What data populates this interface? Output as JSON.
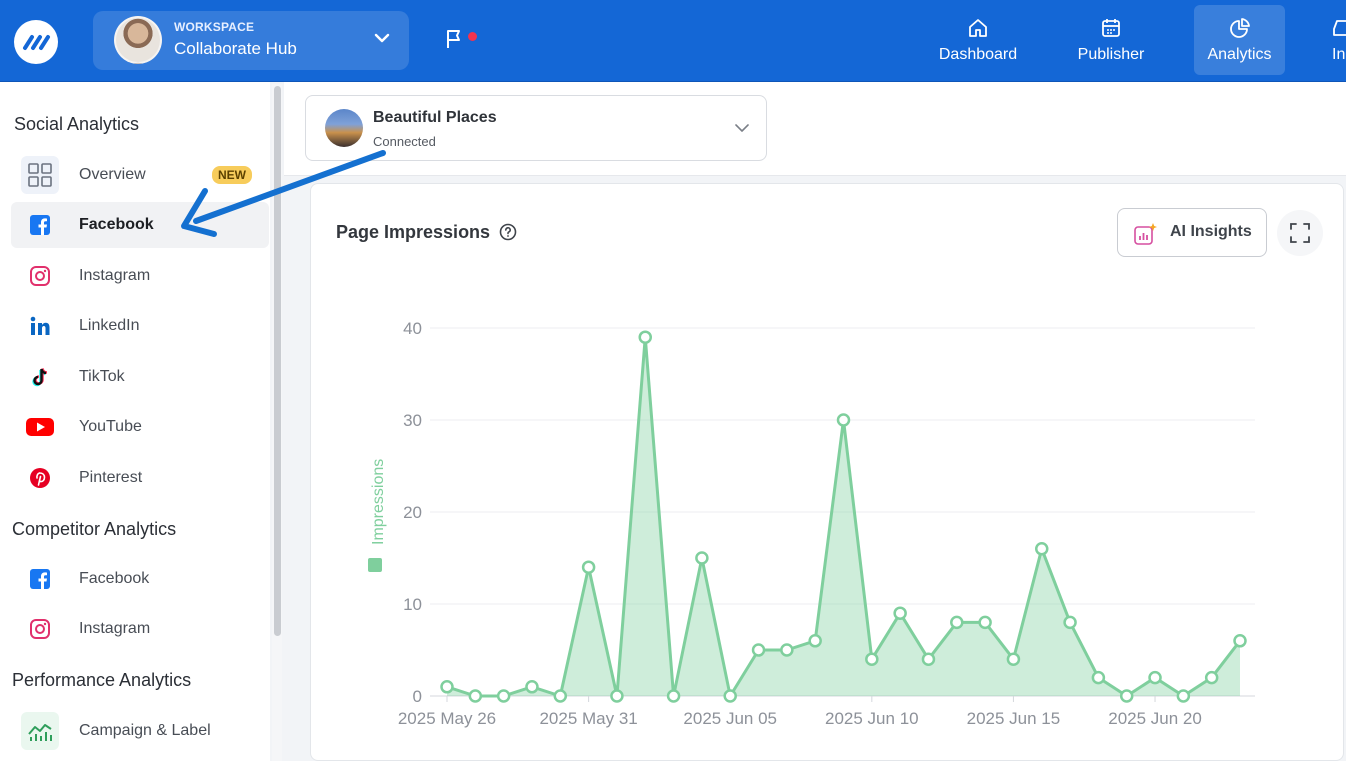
{
  "topbar": {
    "workspace_small": "WORKSPACE",
    "workspace_name": "Collaborate Hub",
    "nav": [
      {
        "label": "Dashboard",
        "icon": "home-icon"
      },
      {
        "label": "Publisher",
        "icon": "calendar-icon"
      },
      {
        "label": "Analytics",
        "icon": "pie-chart-icon",
        "active": true
      },
      {
        "label": "In",
        "icon": "inbox-icon"
      }
    ],
    "brand_color": "#1467d6",
    "notification_color": "#f2334f"
  },
  "sidebar": {
    "sections": [
      {
        "title": "Social Analytics"
      },
      {
        "title": "Competitor Analytics"
      },
      {
        "title": "Performance Analytics"
      }
    ],
    "social": [
      {
        "label": "Overview",
        "icon": "grid-icon",
        "badge": "NEW"
      },
      {
        "label": "Facebook",
        "icon": "facebook-icon",
        "active": true
      },
      {
        "label": "Instagram",
        "icon": "instagram-icon"
      },
      {
        "label": "LinkedIn",
        "icon": "linkedin-icon"
      },
      {
        "label": "TikTok",
        "icon": "tiktok-icon"
      },
      {
        "label": "YouTube",
        "icon": "youtube-icon"
      },
      {
        "label": "Pinterest",
        "icon": "pinterest-icon"
      }
    ],
    "competitor": [
      {
        "label": "Facebook",
        "icon": "facebook-icon"
      },
      {
        "label": "Instagram",
        "icon": "instagram-icon"
      }
    ],
    "performance": [
      {
        "label": "Campaign & Label",
        "icon": "campaign-chart-icon"
      }
    ]
  },
  "account": {
    "name": "Beautiful Places",
    "status": "Connected"
  },
  "card": {
    "title": "Page Impressions",
    "ai_button": "AI Insights"
  },
  "chart_data": {
    "type": "area",
    "title": "Page Impressions",
    "ylabel": "Impressions",
    "xlabel": "",
    "series": [
      {
        "name": "Impressions",
        "color": "#7fcf9d",
        "x": [
          "2025 May 26",
          "2025 May 27",
          "2025 May 28",
          "2025 May 29",
          "2025 May 30",
          "2025 May 31",
          "2025 Jun 01",
          "2025 Jun 02",
          "2025 Jun 03",
          "2025 Jun 04",
          "2025 Jun 05",
          "2025 Jun 06",
          "2025 Jun 07",
          "2025 Jun 08",
          "2025 Jun 09",
          "2025 Jun 10",
          "2025 Jun 11",
          "2025 Jun 12",
          "2025 Jun 13",
          "2025 Jun 14",
          "2025 Jun 15",
          "2025 Jun 16",
          "2025 Jun 17",
          "2025 Jun 18",
          "2025 Jun 19",
          "2025 Jun 20",
          "2025 Jun 21",
          "2025 Jun 22",
          "2025 Jun 23"
        ],
        "values": [
          1,
          0,
          0,
          1,
          0,
          14,
          0,
          39,
          0,
          15,
          0,
          5,
          5,
          6,
          30,
          4,
          9,
          4,
          8,
          8,
          4,
          16,
          8,
          2,
          0,
          2,
          0,
          2,
          6
        ]
      }
    ],
    "yticks": [
      "0",
      "10",
      "20",
      "30",
      "40"
    ],
    "xticks": [
      "2025 May 26",
      "2025 May 31",
      "2025 Jun 05",
      "2025 Jun 10",
      "2025 Jun 15",
      "2025 Jun 20"
    ],
    "ylim": [
      0,
      40
    ],
    "grid": true,
    "legend": "left, vertical"
  }
}
